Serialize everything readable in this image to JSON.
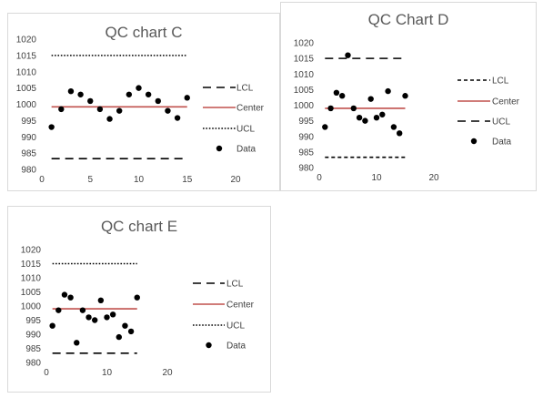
{
  "chart_data": [
    {
      "type": "scatter",
      "title": "QC chart C",
      "xlabel": "",
      "ylabel": "",
      "xlim": [
        0,
        20
      ],
      "ylim": [
        980,
        1020
      ],
      "xticks": [
        0,
        5,
        10,
        15,
        20
      ],
      "yticks": [
        980,
        985,
        990,
        995,
        1000,
        1005,
        1010,
        1015,
        1020
      ],
      "grid": false,
      "legend_position": "right",
      "lines": [
        {
          "name": "LCL",
          "y": 983.3,
          "x_range": [
            1,
            15
          ],
          "color": "#000000",
          "style": "long-dash"
        },
        {
          "name": "Center",
          "y": 999.2,
          "x_range": [
            1,
            15
          ],
          "color": "#c0504d",
          "style": "solid"
        },
        {
          "name": "UCL",
          "y": 1015.0,
          "x_range": [
            1,
            15
          ],
          "color": "#000000",
          "style": "dotted"
        }
      ],
      "series": [
        {
          "name": "Data",
          "x": [
            1,
            2,
            3,
            4,
            5,
            6,
            7,
            8,
            9,
            10,
            11,
            12,
            13,
            14,
            15
          ],
          "y": [
            993.0,
            998.5,
            1004.0,
            1003.0,
            1001.0,
            998.5,
            995.5,
            998.0,
            1003.0,
            1005.0,
            1003.0,
            1001.0,
            998.0,
            995.8,
            1002.0
          ]
        }
      ],
      "legend": [
        {
          "label": "LCL",
          "kind": "line",
          "style": "long-dash",
          "color": "#000000"
        },
        {
          "label": "Center",
          "kind": "line",
          "style": "solid",
          "color": "#c0504d"
        },
        {
          "label": "UCL",
          "kind": "line",
          "style": "dotted",
          "color": "#000000"
        },
        {
          "label": "Data",
          "kind": "marker",
          "color": "#000000"
        }
      ]
    },
    {
      "type": "scatter",
      "title": "QC Chart D",
      "xlabel": "",
      "ylabel": "",
      "xlim": [
        0,
        20
      ],
      "ylim": [
        980,
        1020
      ],
      "xticks": [
        0,
        10,
        20
      ],
      "yticks": [
        980,
        985,
        990,
        995,
        1000,
        1005,
        1010,
        1015,
        1020
      ],
      "grid": false,
      "legend_position": "right",
      "lines": [
        {
          "name": "LCL",
          "y": 983.3,
          "x_range": [
            1,
            15
          ],
          "color": "#000000",
          "style": "short-dash"
        },
        {
          "name": "Center",
          "y": 999.0,
          "x_range": [
            1,
            15
          ],
          "color": "#c0504d",
          "style": "solid"
        },
        {
          "name": "UCL",
          "y": 1015.0,
          "x_range": [
            1,
            15
          ],
          "color": "#000000",
          "style": "long-dash"
        }
      ],
      "series": [
        {
          "name": "Data",
          "x": [
            1,
            2,
            3,
            4,
            5,
            6,
            7,
            8,
            9,
            10,
            11,
            12,
            13,
            14,
            15
          ],
          "y": [
            993.0,
            999.0,
            1004.0,
            1003.0,
            1016.0,
            999.0,
            996.0,
            995.0,
            1002.0,
            996.0,
            997.0,
            1004.5,
            993.0,
            991.0,
            1003.0
          ]
        }
      ],
      "legend": [
        {
          "label": "LCL",
          "kind": "line",
          "style": "short-dash",
          "color": "#000000"
        },
        {
          "label": "Center",
          "kind": "line",
          "style": "solid",
          "color": "#c0504d"
        },
        {
          "label": "UCL",
          "kind": "line",
          "style": "long-dash",
          "color": "#000000"
        },
        {
          "label": "Data",
          "kind": "marker",
          "color": "#000000"
        }
      ]
    },
    {
      "type": "scatter",
      "title": "QC chart E",
      "xlabel": "",
      "ylabel": "",
      "xlim": [
        0,
        20
      ],
      "ylim": [
        980,
        1020
      ],
      "xticks": [
        0,
        10,
        20
      ],
      "yticks": [
        980,
        985,
        990,
        995,
        1000,
        1005,
        1010,
        1015,
        1020
      ],
      "grid": false,
      "legend_position": "right",
      "lines": [
        {
          "name": "LCL",
          "y": 983.3,
          "x_range": [
            1,
            15
          ],
          "color": "#000000",
          "style": "long-dash"
        },
        {
          "name": "Center",
          "y": 999.0,
          "x_range": [
            1,
            15
          ],
          "color": "#c0504d",
          "style": "solid"
        },
        {
          "name": "UCL",
          "y": 1015.0,
          "x_range": [
            1,
            15
          ],
          "color": "#000000",
          "style": "dotted"
        }
      ],
      "series": [
        {
          "name": "Data",
          "x": [
            1,
            2,
            3,
            4,
            5,
            6,
            7,
            8,
            9,
            10,
            11,
            12,
            13,
            14,
            15
          ],
          "y": [
            993.0,
            998.5,
            1004.0,
            1003.0,
            987.0,
            998.5,
            996.0,
            995.0,
            1002.0,
            996.0,
            997.0,
            989.0,
            993.0,
            991.0,
            1003.0
          ]
        }
      ],
      "legend": [
        {
          "label": "LCL",
          "kind": "line",
          "style": "long-dash",
          "color": "#000000"
        },
        {
          "label": "Center",
          "kind": "line",
          "style": "solid",
          "color": "#c0504d"
        },
        {
          "label": "UCL",
          "kind": "line",
          "style": "dotted",
          "color": "#000000"
        },
        {
          "label": "Data",
          "kind": "marker",
          "color": "#000000"
        }
      ]
    }
  ]
}
